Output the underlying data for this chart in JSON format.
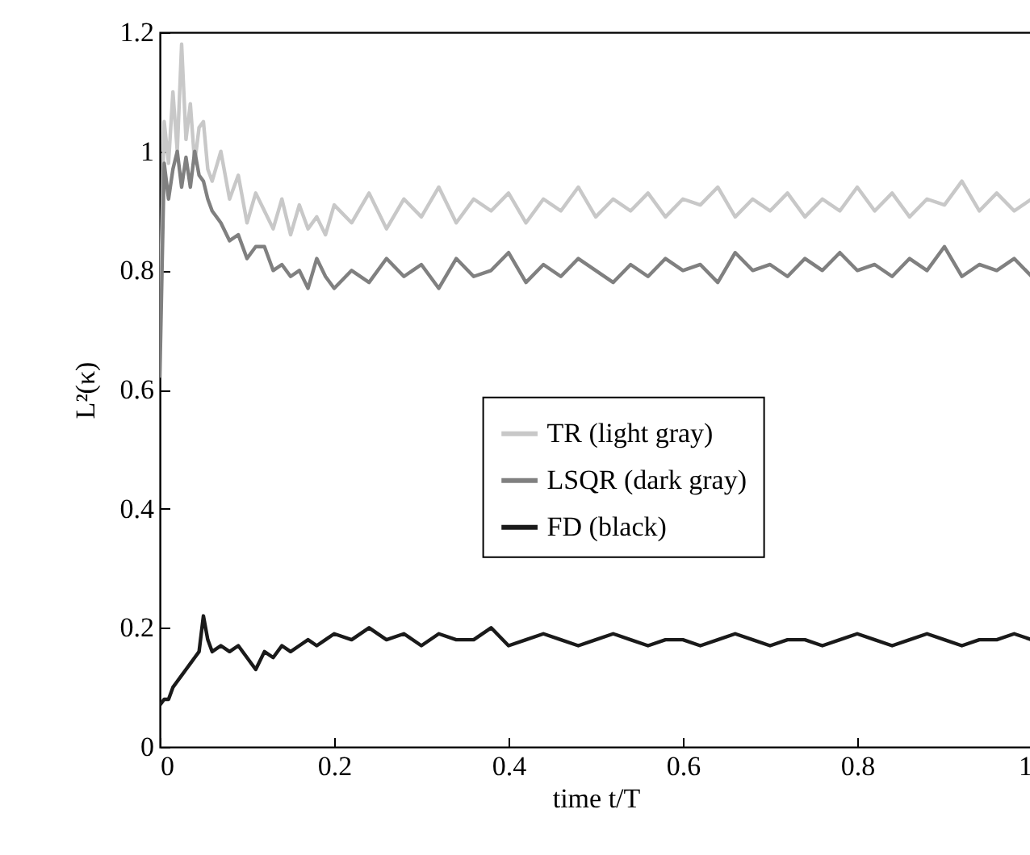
{
  "chart_data": {
    "type": "line",
    "xlabel": "time t/T",
    "ylabel": "L²(κ)",
    "x": [
      0,
      0.005,
      0.01,
      0.015,
      0.02,
      0.025,
      0.03,
      0.035,
      0.04,
      0.045,
      0.05,
      0.055,
      0.06,
      0.07,
      0.08,
      0.09,
      0.1,
      0.11,
      0.12,
      0.13,
      0.14,
      0.15,
      0.16,
      0.17,
      0.18,
      0.19,
      0.2,
      0.22,
      0.24,
      0.26,
      0.28,
      0.3,
      0.32,
      0.34,
      0.36,
      0.38,
      0.4,
      0.42,
      0.44,
      0.46,
      0.48,
      0.5,
      0.52,
      0.54,
      0.56,
      0.58,
      0.6,
      0.62,
      0.64,
      0.66,
      0.68,
      0.7,
      0.72,
      0.74,
      0.76,
      0.78,
      0.8,
      0.82,
      0.84,
      0.86,
      0.88,
      0.9,
      0.92,
      0.94,
      0.96,
      0.98,
      1.0
    ],
    "series": [
      {
        "name": "TR (light gray)",
        "color": "#c8c8c8",
        "values": [
          0.7,
          1.05,
          0.98,
          1.1,
          1.0,
          1.18,
          1.02,
          1.08,
          0.98,
          1.04,
          1.05,
          0.97,
          0.95,
          1.0,
          0.92,
          0.96,
          0.88,
          0.93,
          0.9,
          0.87,
          0.92,
          0.86,
          0.91,
          0.87,
          0.89,
          0.86,
          0.91,
          0.88,
          0.93,
          0.87,
          0.92,
          0.89,
          0.94,
          0.88,
          0.92,
          0.9,
          0.93,
          0.88,
          0.92,
          0.9,
          0.94,
          0.89,
          0.92,
          0.9,
          0.93,
          0.89,
          0.92,
          0.91,
          0.94,
          0.89,
          0.92,
          0.9,
          0.93,
          0.89,
          0.92,
          0.9,
          0.94,
          0.9,
          0.93,
          0.89,
          0.92,
          0.91,
          0.95,
          0.9,
          0.93,
          0.9,
          0.92
        ]
      },
      {
        "name": "LSQR (dark gray)",
        "color": "#808080",
        "values": [
          0.62,
          0.98,
          0.92,
          0.97,
          1.0,
          0.94,
          0.99,
          0.94,
          1.0,
          0.96,
          0.95,
          0.92,
          0.9,
          0.88,
          0.85,
          0.86,
          0.82,
          0.84,
          0.84,
          0.8,
          0.81,
          0.79,
          0.8,
          0.77,
          0.82,
          0.79,
          0.77,
          0.8,
          0.78,
          0.82,
          0.79,
          0.81,
          0.77,
          0.82,
          0.79,
          0.8,
          0.83,
          0.78,
          0.81,
          0.79,
          0.82,
          0.8,
          0.78,
          0.81,
          0.79,
          0.82,
          0.8,
          0.81,
          0.78,
          0.83,
          0.8,
          0.81,
          0.79,
          0.82,
          0.8,
          0.83,
          0.8,
          0.81,
          0.79,
          0.82,
          0.8,
          0.84,
          0.79,
          0.81,
          0.8,
          0.82,
          0.79
        ]
      },
      {
        "name": "FD (black)",
        "color": "#1a1a1a",
        "values": [
          0.07,
          0.08,
          0.08,
          0.1,
          0.11,
          0.12,
          0.13,
          0.14,
          0.15,
          0.16,
          0.22,
          0.18,
          0.16,
          0.17,
          0.16,
          0.17,
          0.15,
          0.13,
          0.16,
          0.15,
          0.17,
          0.16,
          0.17,
          0.18,
          0.17,
          0.18,
          0.19,
          0.18,
          0.2,
          0.18,
          0.19,
          0.17,
          0.19,
          0.18,
          0.18,
          0.2,
          0.17,
          0.18,
          0.19,
          0.18,
          0.17,
          0.18,
          0.19,
          0.18,
          0.17,
          0.18,
          0.18,
          0.17,
          0.18,
          0.19,
          0.18,
          0.17,
          0.18,
          0.18,
          0.17,
          0.18,
          0.19,
          0.18,
          0.17,
          0.18,
          0.19,
          0.18,
          0.17,
          0.18,
          0.18,
          0.19,
          0.18
        ]
      }
    ],
    "xlim": [
      0,
      1
    ],
    "xticks": [
      0,
      0.2,
      0.4,
      0.6,
      0.8,
      1
    ],
    "ylim": [
      0,
      1.2
    ],
    "yticks": [
      0,
      0.2,
      0.4,
      0.6,
      0.8,
      1,
      1.2
    ],
    "legend": "right",
    "line_style": "solid"
  }
}
